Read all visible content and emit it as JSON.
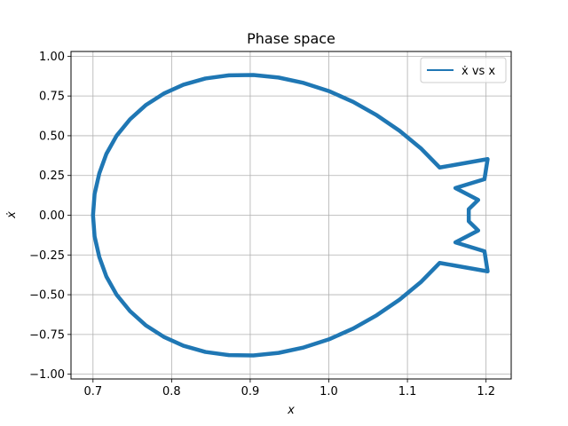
{
  "chart_data": {
    "type": "line",
    "title": "Phase space",
    "xlabel": "x",
    "ylabel": "ẋ",
    "xlim": [
      0.672,
      1.232
    ],
    "ylim": [
      -1.03,
      1.03
    ],
    "xticks": [
      0.7,
      0.8,
      0.9,
      1.0,
      1.1,
      1.2
    ],
    "xtick_labels": [
      "0.7",
      "0.8",
      "0.9",
      "1.0",
      "1.1",
      "1.2"
    ],
    "yticks": [
      -1.0,
      -0.75,
      -0.5,
      -0.25,
      0.0,
      0.25,
      0.5,
      0.75,
      1.0
    ],
    "ytick_labels": [
      "−1.00",
      "−0.75",
      "−0.50",
      "−0.25",
      "0.00",
      "0.25",
      "0.50",
      "0.75",
      "1.00"
    ],
    "grid": true,
    "legend_position": "top-right",
    "series": [
      {
        "name": "ẋ vs x",
        "color": "#1f77b4",
        "x": [
          0.7,
          0.702,
          0.708,
          0.717,
          0.73,
          0.747,
          0.767,
          0.79,
          0.815,
          0.843,
          0.873,
          0.904,
          0.936,
          0.968,
          1.0,
          1.031,
          1.061,
          1.09,
          1.117,
          1.141,
          1.161,
          1.178,
          1.19,
          1.198,
          1.202,
          1.202,
          1.198,
          1.19,
          1.178,
          1.161,
          1.141,
          1.117,
          1.09,
          1.061,
          1.031,
          1.0,
          0.968,
          0.936,
          0.904,
          0.873,
          0.843,
          0.815,
          0.79,
          0.767,
          0.747,
          0.73,
          0.717,
          0.708,
          0.702,
          0.7
        ],
        "y": [
          0.0,
          0.133,
          0.263,
          0.386,
          0.5,
          0.603,
          0.692,
          0.765,
          0.821,
          0.86,
          0.88,
          0.882,
          0.866,
          0.832,
          0.781,
          0.713,
          0.629,
          0.531,
          0.421,
          0.3,
          0.171,
          0.038,
          -0.096,
          -0.227,
          -0.353,
          0.353,
          0.227,
          0.096,
          -0.038,
          -0.171,
          -0.3,
          -0.421,
          -0.531,
          -0.629,
          -0.713,
          -0.781,
          -0.832,
          -0.866,
          -0.882,
          -0.88,
          -0.86,
          -0.821,
          -0.765,
          -0.692,
          -0.603,
          -0.5,
          -0.386,
          -0.263,
          -0.133,
          0.0
        ]
      }
    ]
  }
}
